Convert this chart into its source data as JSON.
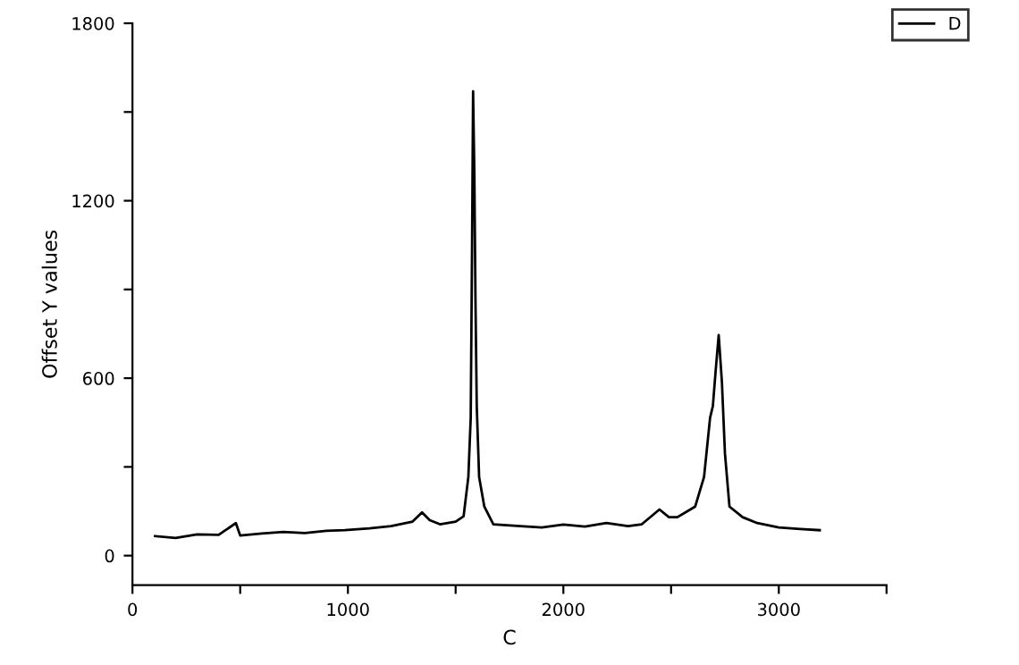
{
  "chart_data": {
    "type": "line",
    "xlabel": "C",
    "ylabel": "Offset Y values",
    "xlim": [
      0,
      3500
    ],
    "xticks": [
      0,
      {
        "value": 500,
        "label": null
      },
      1000,
      {
        "value": 1500,
        "label": null
      },
      2000,
      {
        "value": 2500,
        "label": null
      },
      3000,
      {
        "value": 3500,
        "label": null
      }
    ],
    "ylim": [
      -100,
      1800
    ],
    "yticks": [
      0,
      {
        "value": 300,
        "label": null
      },
      600,
      {
        "value": 900,
        "label": null
      },
      1200,
      {
        "value": 1500,
        "label": null
      },
      1800
    ],
    "legend": "top right",
    "grid": false,
    "series": [
      {
        "name": "D",
        "color": "#000000",
        "x": [
          105,
          200,
          300,
          400,
          480,
          500,
          600,
          700,
          800,
          900,
          985,
          1100,
          1200,
          1300,
          1344,
          1380,
          1427,
          1500,
          1537,
          1559,
          1570,
          1576,
          1581,
          1587,
          1592,
          1598,
          1609,
          1633,
          1675,
          1800,
          1900,
          2000,
          2100,
          2200,
          2300,
          2364,
          2446,
          2490,
          2529,
          2612,
          2653,
          2681,
          2694,
          2707,
          2721,
          2736,
          2750,
          2771,
          2832,
          2900,
          3000,
          3100,
          3190
        ],
        "values": [
          66,
          60,
          72,
          70,
          110,
          68,
          75,
          80,
          76,
          84,
          86,
          92,
          100,
          115,
          146,
          120,
          106,
          115,
          133,
          266,
          466,
          1026,
          1570,
          1286,
          866,
          506,
          266,
          166,
          106,
          100,
          95,
          105,
          98,
          110,
          100,
          106,
          156,
          130,
          130,
          166,
          266,
          466,
          506,
          626,
          746,
          586,
          346,
          166,
          130,
          110,
          95,
          90,
          86
        ]
      }
    ]
  }
}
